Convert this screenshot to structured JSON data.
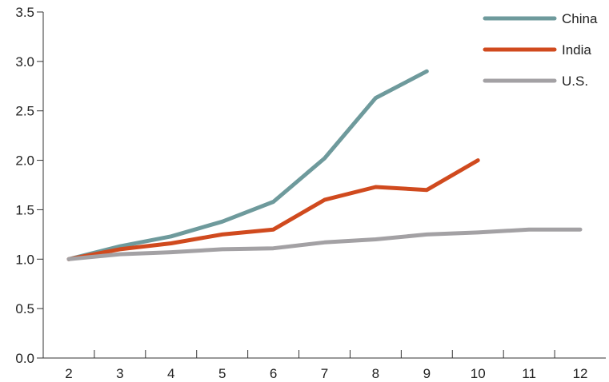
{
  "chart_data": {
    "type": "line",
    "x": [
      2,
      3,
      4,
      5,
      6,
      7,
      8,
      9,
      10,
      11,
      12
    ],
    "xlim": [
      1.5,
      12.5
    ],
    "ylim": [
      0,
      3.5
    ],
    "xticks": [
      "2",
      "3",
      "4",
      "5",
      "6",
      "7",
      "8",
      "9",
      "10",
      "11",
      "12"
    ],
    "yticks": [
      "0.0",
      "0.5",
      "1.0",
      "1.5",
      "2.0",
      "2.5",
      "3.0",
      "3.5"
    ],
    "grid": false,
    "legend_position": "top-right",
    "series": [
      {
        "name": "China",
        "color": "#6E9A9C",
        "points": [
          [
            2,
            1.0
          ],
          [
            3,
            1.13
          ],
          [
            4,
            1.23
          ],
          [
            5,
            1.38
          ],
          [
            6,
            1.58
          ],
          [
            7,
            2.02
          ],
          [
            8,
            2.63
          ],
          [
            9,
            2.9
          ]
        ]
      },
      {
        "name": "India",
        "color": "#D04A1E",
        "points": [
          [
            2,
            1.0
          ],
          [
            3,
            1.1
          ],
          [
            4,
            1.16
          ],
          [
            5,
            1.25
          ],
          [
            6,
            1.3
          ],
          [
            7,
            1.6
          ],
          [
            8,
            1.73
          ],
          [
            9,
            1.7
          ],
          [
            10,
            2.0
          ]
        ]
      },
      {
        "name": "U.S.",
        "color": "#A3A1A4",
        "points": [
          [
            2,
            1.0
          ],
          [
            3,
            1.05
          ],
          [
            4,
            1.07
          ],
          [
            5,
            1.1
          ],
          [
            6,
            1.11
          ],
          [
            7,
            1.17
          ],
          [
            8,
            1.2
          ],
          [
            9,
            1.25
          ],
          [
            10,
            1.27
          ],
          [
            11,
            1.3
          ],
          [
            12,
            1.3
          ]
        ]
      }
    ]
  }
}
